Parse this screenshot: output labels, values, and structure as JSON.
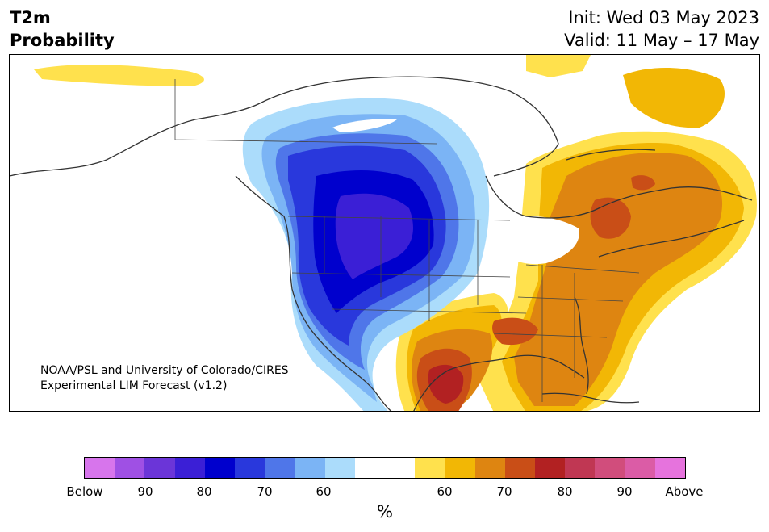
{
  "header": {
    "title_line1": "T2m",
    "title_line2": "Probability",
    "init": "Init: Wed 03 May 2023",
    "valid": "Valid: 11 May – 17 May"
  },
  "map": {
    "region": "North America",
    "credit_line1": "NOAA/PSL and University of Colorado/CIRES",
    "credit_line2": "Experimental LIM Forecast (v1.2)"
  },
  "colorbar": {
    "colors": [
      "#d775ec",
      "#9f50e4",
      "#6b35d8",
      "#3b1fd6",
      "#0000cd",
      "#2938dc",
      "#4f76e9",
      "#7bb4f5",
      "#abdcfb",
      "#ffffff",
      "#ffffff",
      "#ffe14d",
      "#f2b705",
      "#de8511",
      "#c94e17",
      "#b22122",
      "#c03753",
      "#d14d7c",
      "#db5ca6",
      "#e673dd"
    ],
    "labels": [
      {
        "text": "Below"
      },
      {
        "text": "90"
      },
      {
        "text": "80"
      },
      {
        "text": "70"
      },
      {
        "text": "60"
      },
      {
        "text": "60"
      },
      {
        "text": "70"
      },
      {
        "text": "80"
      },
      {
        "text": "90"
      },
      {
        "text": "Above"
      }
    ],
    "unit": "%"
  }
}
